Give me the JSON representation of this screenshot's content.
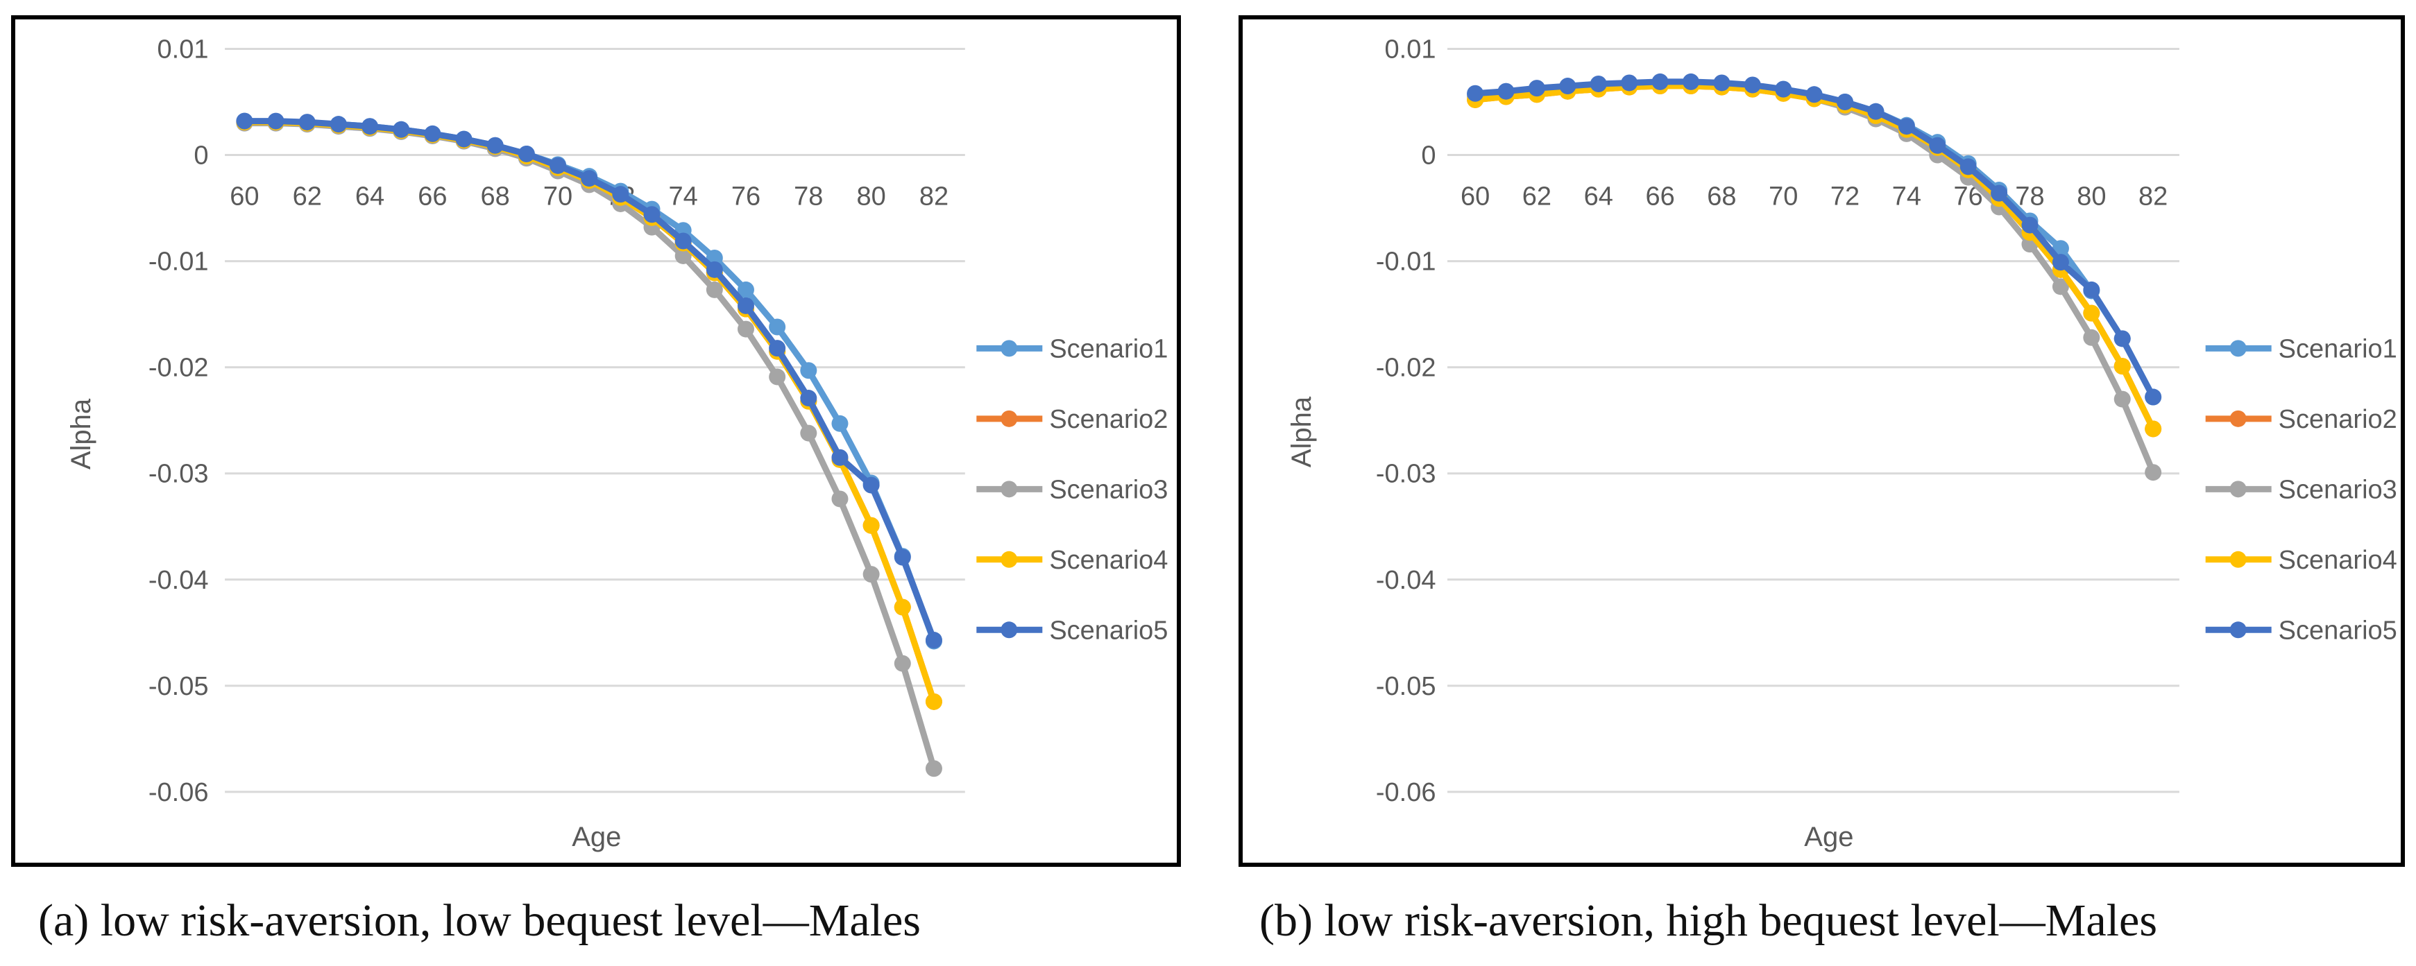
{
  "chart_data": [
    {
      "type": "line",
      "panel": "a",
      "caption": "(a) low risk-aversion, low bequest level—Males",
      "title": "",
      "xlabel": "Age",
      "ylabel": "Alpha",
      "x": [
        60,
        61,
        62,
        63,
        64,
        65,
        66,
        67,
        68,
        69,
        70,
        71,
        72,
        73,
        74,
        75,
        76,
        77,
        78,
        79,
        80,
        81,
        82
      ],
      "xticks": [
        "60",
        "62",
        "64",
        "66",
        "68",
        "70",
        "72",
        "74",
        "76",
        "78",
        "80",
        "82"
      ],
      "yticks": [
        "0.01",
        "0",
        "-0.01",
        "-0.02",
        "-0.03",
        "-0.04",
        "-0.05",
        "-0.06"
      ],
      "ylim": [
        -0.06,
        0.01
      ],
      "grid": true,
      "legend": "right",
      "series": [
        {
          "name": "Scenario1",
          "color": "#5B9BD5",
          "values": [
            0.0032,
            0.0031,
            0.003,
            0.0029,
            0.0027,
            0.0024,
            0.002,
            0.0015,
            0.0009,
            0.0001,
            -0.0009,
            -0.002,
            -0.0034,
            -0.0051,
            -0.0071,
            -0.0097,
            -0.0127,
            -0.0162,
            -0.0203,
            -0.0253,
            -0.0309,
            -0.0378,
            -0.0458
          ]
        },
        {
          "name": "Scenario2",
          "color": "#ED7D31",
          "values": [
            0.0031,
            0.0031,
            0.003,
            0.0028,
            0.0026,
            0.0023,
            0.0019,
            0.0014,
            0.0008,
            -0.0001,
            -0.0012,
            -0.0024,
            -0.004,
            -0.0059,
            -0.0083,
            -0.0111,
            -0.0145,
            -0.0185,
            -0.0232,
            -0.0287,
            -0.0349,
            -0.0426,
            -0.0515
          ]
        },
        {
          "name": "Scenario3",
          "color": "#A5A5A5",
          "values": [
            0.003,
            0.003,
            0.0029,
            0.0027,
            0.0025,
            0.0022,
            0.0018,
            0.0013,
            0.0006,
            -0.0003,
            -0.0015,
            -0.0028,
            -0.0046,
            -0.0068,
            -0.0095,
            -0.0127,
            -0.0164,
            -0.0209,
            -0.0262,
            -0.0324,
            -0.0395,
            -0.0479,
            -0.0578
          ]
        },
        {
          "name": "Scenario4",
          "color": "#FFC000",
          "values": [
            0.0031,
            0.0031,
            0.003,
            0.0028,
            0.0026,
            0.0023,
            0.0019,
            0.0014,
            0.0008,
            -0.0001,
            -0.0012,
            -0.0024,
            -0.004,
            -0.0059,
            -0.0083,
            -0.0111,
            -0.0145,
            -0.0185,
            -0.0232,
            -0.0287,
            -0.0349,
            -0.0426,
            -0.0515
          ]
        },
        {
          "name": "Scenario5",
          "color": "#4472C4",
          "values": [
            0.0032,
            0.0032,
            0.0031,
            0.0029,
            0.0027,
            0.0024,
            0.002,
            0.0015,
            0.0009,
            0.0001,
            -0.001,
            -0.0022,
            -0.0037,
            -0.0056,
            -0.0081,
            -0.0108,
            -0.0142,
            -0.0182,
            -0.0229,
            -0.0285,
            -0.0311,
            -0.0379,
            -0.0457
          ]
        }
      ]
    },
    {
      "type": "line",
      "panel": "b",
      "caption": "(b) low risk-aversion, high bequest level—Males",
      "title": "",
      "xlabel": "Age",
      "ylabel": "Alpha",
      "x": [
        60,
        61,
        62,
        63,
        64,
        65,
        66,
        67,
        68,
        69,
        70,
        71,
        72,
        73,
        74,
        75,
        76,
        77,
        78,
        79,
        80,
        81,
        82
      ],
      "xticks": [
        "60",
        "62",
        "64",
        "66",
        "68",
        "70",
        "72",
        "74",
        "76",
        "78",
        "80",
        "82"
      ],
      "yticks": [
        "0.01",
        "0",
        "-0.01",
        "-0.02",
        "-0.03",
        "-0.04",
        "-0.05",
        "-0.06"
      ],
      "ylim": [
        -0.06,
        0.01
      ],
      "grid": true,
      "legend": "right",
      "series": [
        {
          "name": "Scenario1",
          "color": "#5B9BD5",
          "values": [
            0.0057,
            0.006,
            0.0062,
            0.0064,
            0.0066,
            0.0067,
            0.0068,
            0.0068,
            0.0067,
            0.0065,
            0.0062,
            0.0057,
            0.005,
            0.0041,
            0.0028,
            0.0012,
            -0.0008,
            -0.0033,
            -0.0062,
            -0.0088,
            -0.0128,
            -0.0173,
            -0.0228
          ]
        },
        {
          "name": "Scenario2",
          "color": "#ED7D31",
          "values": [
            0.0052,
            0.0055,
            0.0057,
            0.006,
            0.0062,
            0.0064,
            0.0065,
            0.0065,
            0.0064,
            0.0062,
            0.0058,
            0.0053,
            0.0047,
            0.0037,
            0.0024,
            0.0007,
            -0.0014,
            -0.0041,
            -0.0073,
            -0.0108,
            -0.0149,
            -0.0199,
            -0.0258
          ]
        },
        {
          "name": "Scenario3",
          "color": "#A5A5A5",
          "values": [
            0.0055,
            0.0058,
            0.006,
            0.0062,
            0.0064,
            0.0065,
            0.0066,
            0.0066,
            0.0065,
            0.0063,
            0.0059,
            0.0053,
            0.0045,
            0.0034,
            0.002,
            0.0,
            -0.0021,
            -0.0049,
            -0.0084,
            -0.0124,
            -0.0172,
            -0.023,
            -0.0299
          ]
        },
        {
          "name": "Scenario4",
          "color": "#FFC000",
          "values": [
            0.0052,
            0.0055,
            0.0057,
            0.006,
            0.0062,
            0.0064,
            0.0065,
            0.0065,
            0.0064,
            0.0062,
            0.0058,
            0.0053,
            0.0047,
            0.0037,
            0.0024,
            0.0007,
            -0.0014,
            -0.0041,
            -0.0073,
            -0.0108,
            -0.0149,
            -0.0199,
            -0.0258
          ]
        },
        {
          "name": "Scenario5",
          "color": "#4472C4",
          "values": [
            0.0058,
            0.006,
            0.0063,
            0.0065,
            0.0067,
            0.0068,
            0.0069,
            0.0069,
            0.0068,
            0.0066,
            0.0062,
            0.0057,
            0.005,
            0.0041,
            0.0027,
            0.0009,
            -0.0011,
            -0.0036,
            -0.0066,
            -0.0101,
            -0.0127,
            -0.0173,
            -0.0228
          ]
        }
      ]
    }
  ]
}
